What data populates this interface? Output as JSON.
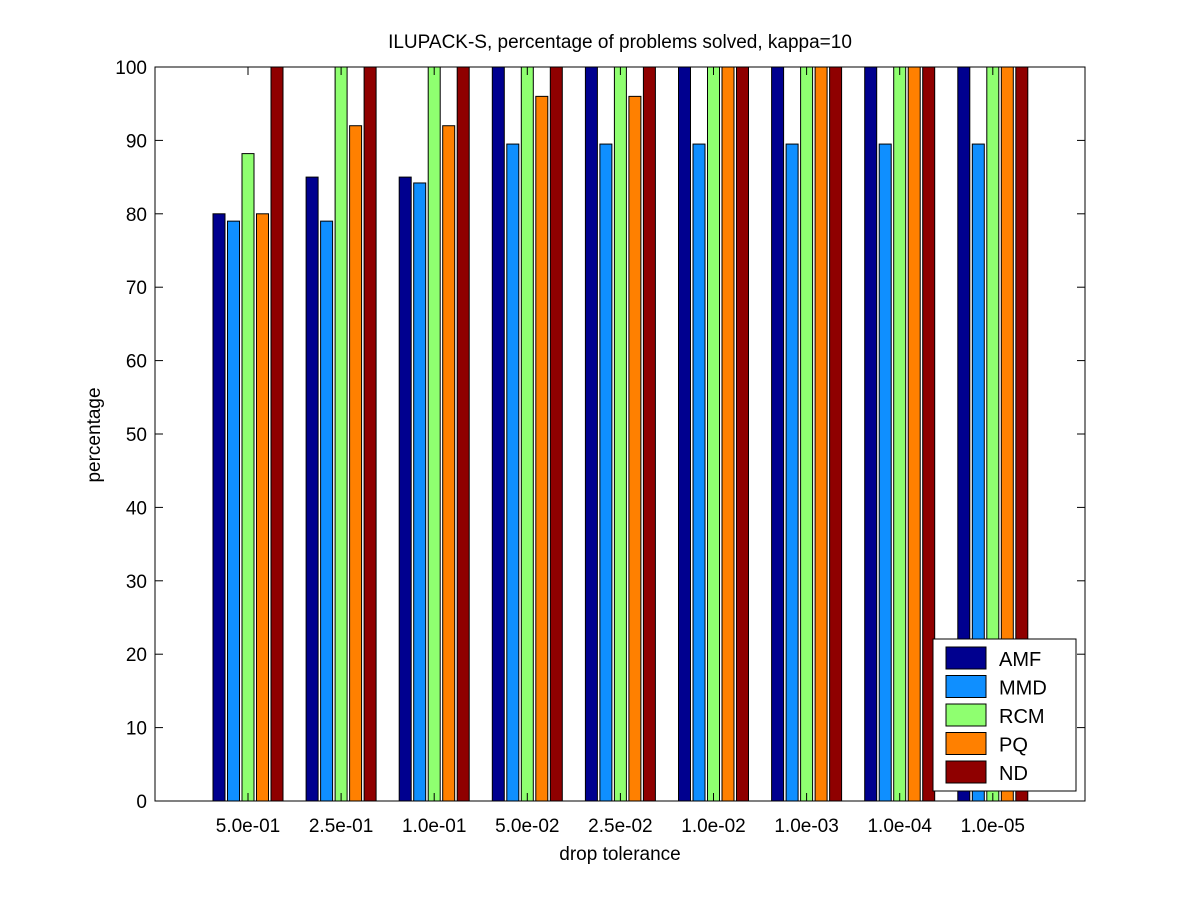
{
  "chart_data": {
    "type": "bar",
    "title": "ILUPACK-S, percentage of problems solved, kappa=10",
    "xlabel": "drop tolerance",
    "ylabel": "percentage",
    "ylim": [
      0,
      100
    ],
    "yticks": [
      0,
      10,
      20,
      30,
      40,
      50,
      60,
      70,
      80,
      90,
      100
    ],
    "categories": [
      "5.0e-01",
      "2.5e-01",
      "1.0e-01",
      "5.0e-02",
      "2.5e-02",
      "1.0e-02",
      "1.0e-03",
      "1.0e-04",
      "1.0e-05"
    ],
    "series": [
      {
        "name": "AMF",
        "color": "#00008f",
        "values": [
          80,
          85,
          85,
          100,
          100,
          100,
          100,
          100,
          100
        ]
      },
      {
        "name": "MMD",
        "color": "#0f8fff",
        "values": [
          79,
          79,
          84.2,
          89.5,
          89.5,
          89.5,
          89.5,
          89.5,
          89.5
        ]
      },
      {
        "name": "RCM",
        "color": "#8fff70",
        "values": [
          88.2,
          100,
          100,
          100,
          100,
          100,
          100,
          100,
          100
        ]
      },
      {
        "name": "PQ",
        "color": "#ff8000",
        "values": [
          80,
          92,
          92,
          96,
          96,
          100,
          100,
          100,
          100
        ]
      },
      {
        "name": "ND",
        "color": "#8f0000",
        "values": [
          100,
          100,
          100,
          100,
          100,
          100,
          100,
          100,
          100
        ]
      }
    ],
    "legend_position": "bottom-right",
    "grid": false
  }
}
